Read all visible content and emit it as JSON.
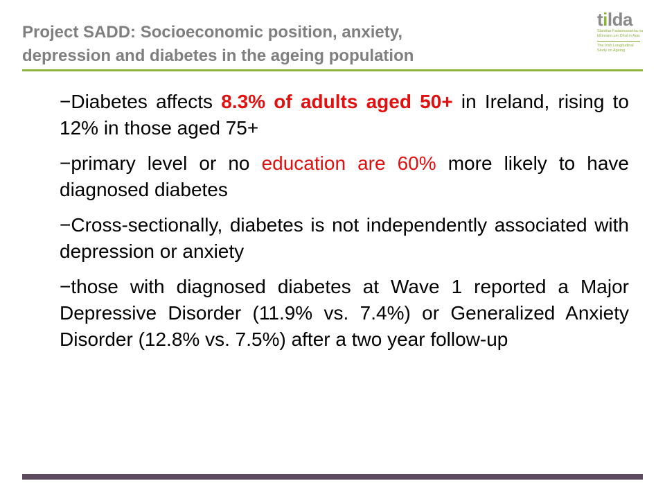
{
  "title": {
    "line1": "Project SADD: Socioeconomic position, anxiety,",
    "line2": "depression and diabetes in the ageing population"
  },
  "logo": {
    "word_prefix": "t",
    "word_dot": "i",
    "word_suffix": "lda",
    "tagline_irish": "Staidéar Fadaimseartha na hÉireann um Dhul in Aois",
    "tagline_english": "The Irish Longitudinal Study on Ageing"
  },
  "bullets": [
    {
      "b1_a": "−Diabetes affects ",
      "b1_hl": "8.3% of adults aged 50+",
      "b1_b": " in Ireland, rising to 12% in those aged 75+"
    },
    {
      "b2_a": "−primary level or no ",
      "b2_hl": "education are 60%",
      "b2_b": " more likely to have diagnosed diabetes"
    },
    {
      "b3": "−Cross-sectionally, diabetes is not independently associated with depression or anxiety"
    },
    {
      "b4": "−those with diagnosed diabetes at Wave 1 reported a Major Depressive Disorder (11.9% vs. 7.4%) or Generalized Anxiety Disorder (12.8% vs. 7.5%) after a  two year follow-up"
    }
  ],
  "colors": {
    "title": "#7f7f7f",
    "accent_green": "#8db33d",
    "highlight_red": "#e01010",
    "footer_bar": "#5c4a5f"
  }
}
